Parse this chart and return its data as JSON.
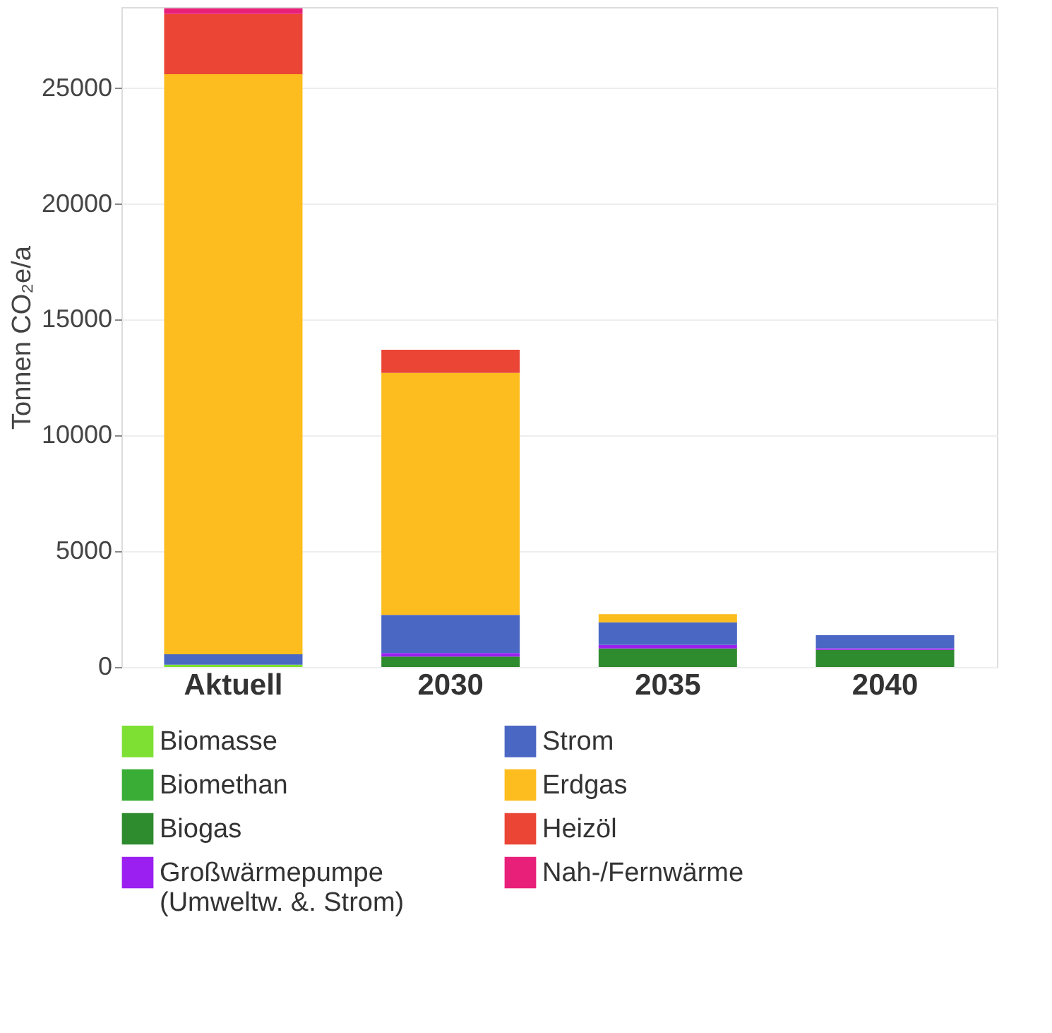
{
  "chart_data": {
    "type": "bar",
    "stacked": true,
    "ylabel": "Tonnen CO₂e/a",
    "categories": [
      "Aktuell",
      "2030",
      "2035",
      "2040"
    ],
    "series": [
      {
        "name": "Biomasse",
        "color": "#7ee032",
        "values": [
          100,
          0,
          0,
          0
        ]
      },
      {
        "name": "Biomethan",
        "color": "#39ad35",
        "values": [
          0,
          0,
          0,
          0
        ]
      },
      {
        "name": "Biogas",
        "color": "#2e8b2e",
        "values": [
          0,
          450,
          800,
          740
        ]
      },
      {
        "name": "Großwärmepumpe (Umweltw. &. Strom)",
        "color": "#9a1ff0",
        "values": [
          0,
          150,
          150,
          70
        ]
      },
      {
        "name": "Strom",
        "color": "#4a67c4",
        "values": [
          450,
          1650,
          980,
          560
        ]
      },
      {
        "name": "Erdgas",
        "color": "#fdbd1e",
        "values": [
          25050,
          10450,
          350,
          0
        ]
      },
      {
        "name": "Heizöl",
        "color": "#ea4535",
        "values": [
          2600,
          1000,
          0,
          0
        ]
      },
      {
        "name": "Nah-/Fernwärme",
        "color": "#e8207a",
        "values": [
          250,
          0,
          0,
          0
        ]
      }
    ],
    "ylim": [
      0,
      28500
    ],
    "yticks": [
      0,
      5000,
      10000,
      15000,
      20000,
      25000
    ],
    "grid": "y",
    "legend": "bottom"
  }
}
